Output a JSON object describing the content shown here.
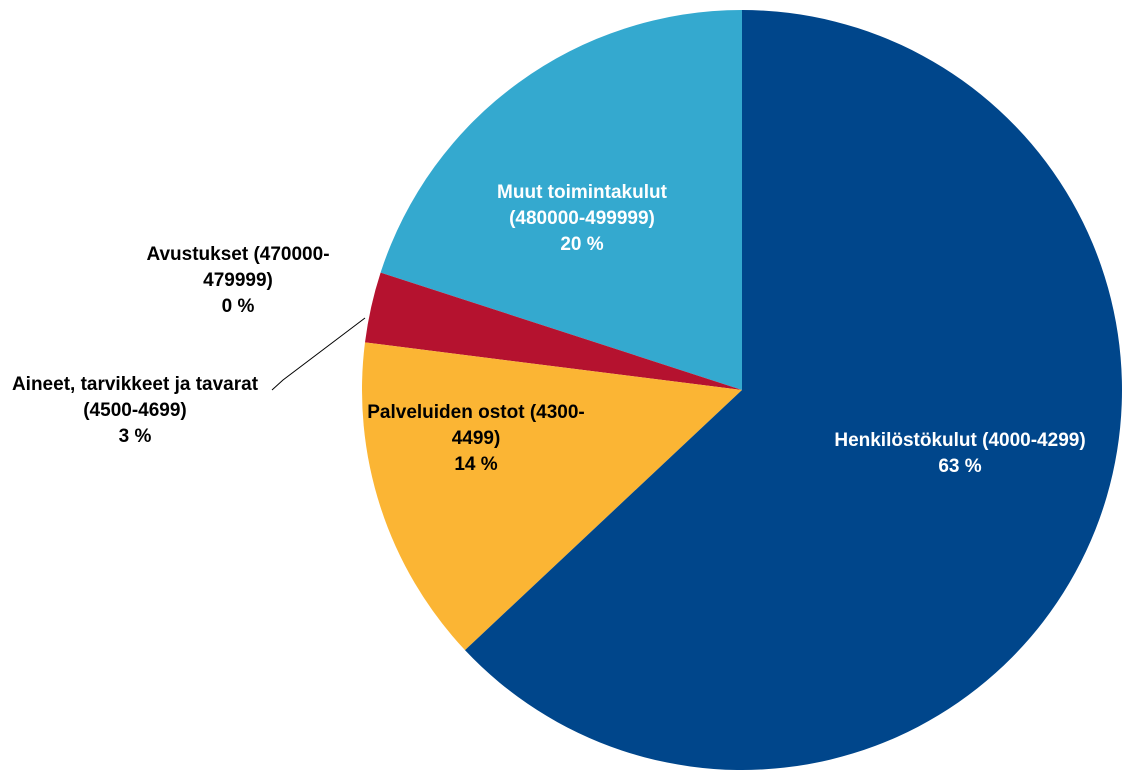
{
  "chart_data": {
    "type": "pie",
    "categories": [
      "Henkilöstökulut (4000-4299)",
      "Palveluiden ostot (4300-4499)",
      "Aineet, tarvikkeet ja tavarat (4500-4699)",
      "Avustukset (470000-479999)",
      "Muut toimintakulut (480000-499999)"
    ],
    "values": [
      63,
      14,
      3,
      0,
      20
    ],
    "value_labels": [
      "63 %",
      "14 %",
      "3 %",
      "0 %",
      "20 %"
    ],
    "colors": [
      "#00468b",
      "#fbb534",
      "#b5122f",
      "#7f7f7f",
      "#34a9cf"
    ]
  }
}
